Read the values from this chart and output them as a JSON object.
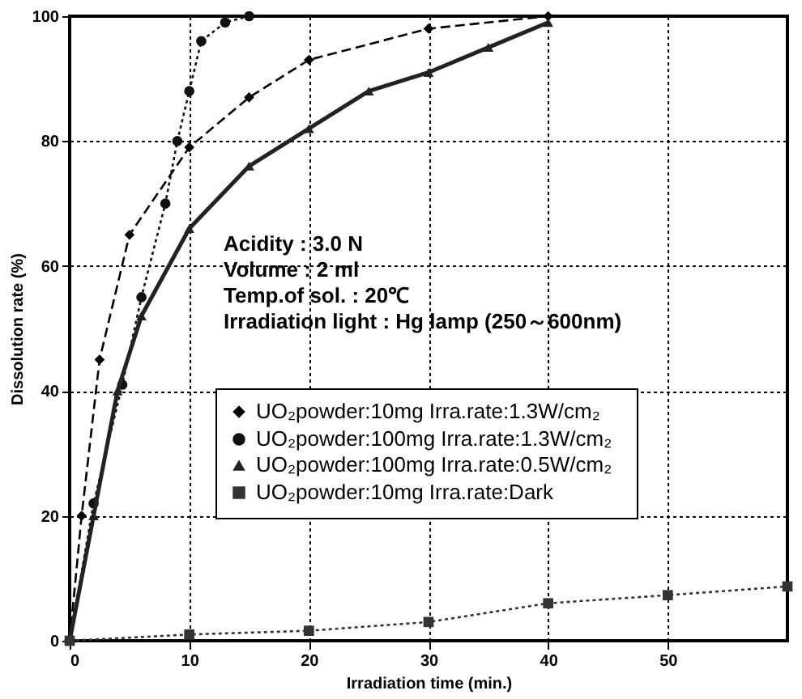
{
  "chart_data": {
    "type": "line",
    "xlabel": "Irradiation time (min.)",
    "ylabel": "Dissolution rate (%)",
    "xlim": [
      0,
      60
    ],
    "ylim": [
      0,
      100
    ],
    "xticks": [
      0,
      10,
      20,
      30,
      40,
      50
    ],
    "yticks": [
      0,
      20,
      40,
      60,
      80,
      100
    ],
    "grid": true,
    "legend": "bottom",
    "annotations": [
      "Acidity : 3.0 N",
      "Volume : 2 ml",
      "Temp.of sol. : 20℃",
      "Irradiation light : Hg lamp (250～600nm)"
    ],
    "series": [
      {
        "name": "UO₂powder:10mg   Irra.rate:1.3W/cm₂",
        "color": "#000000",
        "marker": "diamond",
        "line_style": "dashed",
        "x": [
          0,
          1,
          2.5,
          5,
          10,
          15,
          20,
          30,
          40
        ],
        "values": [
          0,
          20,
          45,
          65,
          79,
          87,
          93,
          98,
          100
        ]
      },
      {
        "name": "UO₂powder:100mg   Irra.rate:1.3W/cm₂",
        "color": "#111111",
        "marker": "circle",
        "line_style": "dotted",
        "x": [
          0,
          2,
          4.4,
          6,
          8,
          9,
          10,
          11,
          13,
          15
        ],
        "values": [
          0,
          22,
          41,
          55,
          70,
          80,
          88,
          96,
          99,
          100
        ]
      },
      {
        "name": "UO₂powder:100mg   Irra.rate:0.5W/cm₂",
        "color": "#222222",
        "marker": "triangle",
        "line_style": "solid",
        "x": [
          0,
          2,
          4,
          6,
          10,
          15,
          20,
          25,
          30,
          35,
          40
        ],
        "values": [
          0,
          20,
          40,
          52,
          66,
          76,
          82,
          88,
          91,
          95,
          99
        ]
      },
      {
        "name": "UO₂powder:10mg   Irra.rate:Dark",
        "color": "#333333",
        "marker": "square",
        "line_style": "dotted",
        "x": [
          0,
          10,
          20,
          30,
          40,
          50,
          60
        ],
        "values": [
          0,
          1,
          1.6,
          3,
          6,
          7.3,
          8.7
        ]
      }
    ]
  }
}
